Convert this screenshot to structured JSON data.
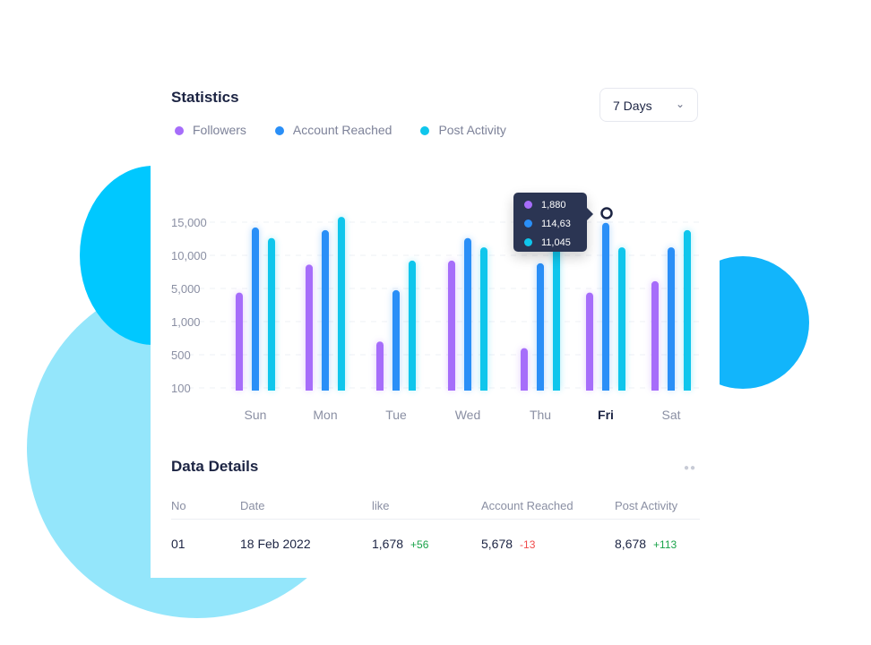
{
  "colors": {
    "followers": "#a66dfa",
    "account": "#2a8ff7",
    "post": "#0fc6ec"
  },
  "header": {
    "title": "Statistics",
    "range": "7 Days"
  },
  "chart_data": {
    "type": "bar",
    "title": "Statistics",
    "categories": [
      "Sun",
      "Mon",
      "Tue",
      "Wed",
      "Thu",
      "Fri",
      "Sat"
    ],
    "highlighted": "Fri",
    "yticks": [
      100,
      500,
      1000,
      5000,
      10000,
      15000
    ],
    "ytick_labels": [
      "100",
      "500",
      "1,000",
      "5,000",
      "10,000",
      "15,000"
    ],
    "series": [
      {
        "name": "Followers",
        "values": [
          4500,
          8600,
          700,
          9200,
          600,
          4500,
          6100
        ]
      },
      {
        "name": "Account Reached",
        "values": [
          14200,
          13800,
          4800,
          12600,
          8800,
          14900,
          11200
        ]
      },
      {
        "name": "Post Activity",
        "values": [
          12600,
          15800,
          9200,
          11200,
          14000,
          11200,
          13800
        ]
      }
    ],
    "tooltip": [
      "1,880",
      "114,63",
      "11,045"
    ],
    "legend": "top-left",
    "grid": true
  },
  "details": {
    "title": "Data Details",
    "headers": [
      "No",
      "Date",
      "like",
      "Account Reached",
      "Post Activity"
    ],
    "rows": [
      {
        "no": "01",
        "date": "18 Feb 2022",
        "like": "1,678",
        "like_d": "+56",
        "acc": "5,678",
        "acc_d": "-13",
        "post": "8,678",
        "post_d": "+113"
      }
    ]
  }
}
